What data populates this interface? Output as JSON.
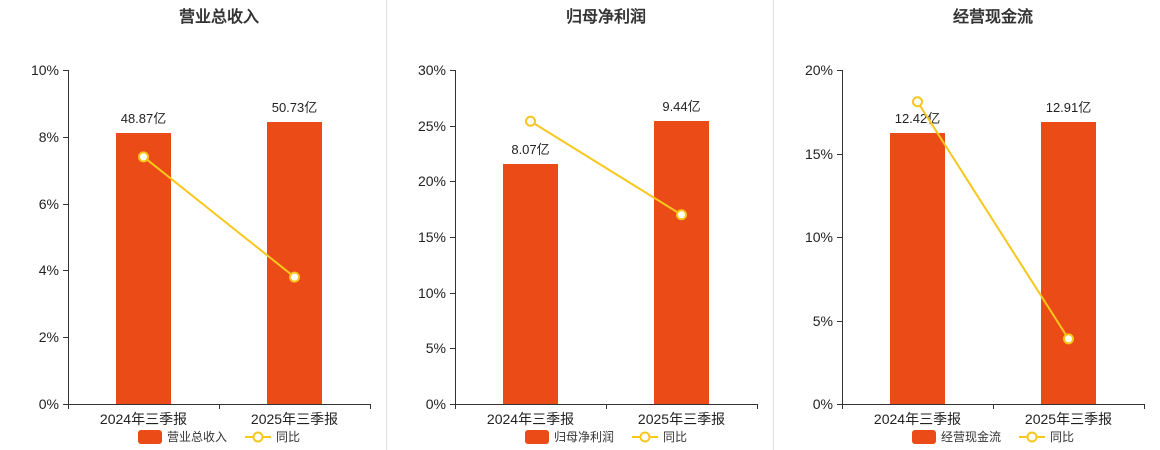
{
  "page": {
    "background": "#ffffff",
    "divider_color": "#e0e0e0"
  },
  "chart_data": [
    {
      "type": "bar",
      "title": "营业总收入",
      "categories": [
        "2024年三季报",
        "2025年三季报"
      ],
      "ylim": [
        0,
        10
      ],
      "ytick_step": 2,
      "ytick_labels": [
        "0%",
        "2%",
        "4%",
        "6%",
        "8%",
        "10%"
      ],
      "grid": false,
      "legend_position": "bottom",
      "series": [
        {
          "type": "bar",
          "name": "营业总收入",
          "value_labels": [
            "48.87亿",
            "50.73亿"
          ],
          "axis_values": [
            8.12,
            8.45
          ],
          "color": "#ea4b17"
        },
        {
          "type": "line",
          "name": "同比",
          "values": [
            7.4,
            3.8
          ],
          "color": "#f7c71d"
        }
      ]
    },
    {
      "type": "bar",
      "title": "归母净利润",
      "categories": [
        "2024年三季报",
        "2025年三季报"
      ],
      "ylim": [
        0,
        30
      ],
      "ytick_step": 5,
      "ytick_labels": [
        "0%",
        "5%",
        "10%",
        "15%",
        "20%",
        "25%",
        "30%"
      ],
      "grid": false,
      "legend_position": "bottom",
      "series": [
        {
          "type": "bar",
          "name": "归母净利润",
          "value_labels": [
            "8.07亿",
            "9.44亿"
          ],
          "axis_values": [
            21.6,
            25.4
          ],
          "color": "#ea4b17"
        },
        {
          "type": "line",
          "name": "同比",
          "values": [
            25.4,
            17.0
          ],
          "color": "#f7c71d"
        }
      ]
    },
    {
      "type": "bar",
      "title": "经营现金流",
      "categories": [
        "2024年三季报",
        "2025年三季报"
      ],
      "ylim": [
        0,
        20
      ],
      "ytick_step": 5,
      "ytick_labels": [
        "0%",
        "5%",
        "10%",
        "15%",
        "20%"
      ],
      "grid": false,
      "legend_position": "bottom",
      "series": [
        {
          "type": "bar",
          "name": "经营现金流",
          "value_labels": [
            "12.42亿",
            "12.91亿"
          ],
          "axis_values": [
            16.25,
            16.9
          ],
          "color": "#ea4b17"
        },
        {
          "type": "line",
          "name": "同比",
          "values": [
            18.1,
            3.9
          ],
          "color": "#f7c71d"
        }
      ]
    }
  ]
}
